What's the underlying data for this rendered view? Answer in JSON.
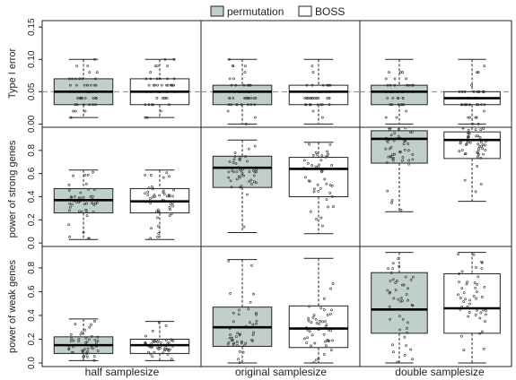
{
  "chart_data": {
    "type": "boxplot",
    "legend": {
      "placement": "top-center",
      "entries": [
        {
          "name": "permutation",
          "color": "#c0cfcc"
        },
        {
          "name": "BOSS",
          "color": "#ffffff"
        }
      ]
    },
    "columns": [
      "half samplesize",
      "original samplesize",
      "double samplesize"
    ],
    "series": [
      "permutation",
      "BOSS"
    ],
    "rows": [
      {
        "ylabel": "Type I error",
        "ylim": [
          -0.005,
          0.16
        ],
        "ticks": [
          0.0,
          0.05,
          0.1,
          0.15
        ],
        "tick_labels": [
          "0.00",
          "0.05",
          "0.10",
          "0.15"
        ],
        "reference_line": 0.05,
        "boxes": [
          [
            {
              "min": 0.01,
              "q1": 0.03,
              "median": 0.05,
              "q3": 0.07,
              "max": 0.1
            },
            {
              "min": 0.01,
              "q1": 0.03,
              "median": 0.05,
              "q3": 0.07,
              "max": 0.1
            }
          ],
          [
            {
              "min": 0.0,
              "q1": 0.03,
              "median": 0.05,
              "q3": 0.06,
              "max": 0.1
            },
            {
              "min": 0.0,
              "q1": 0.03,
              "median": 0.05,
              "q3": 0.06,
              "max": 0.1
            }
          ],
          [
            {
              "min": 0.0,
              "q1": 0.03,
              "median": 0.05,
              "q3": 0.06,
              "max": 0.1
            },
            {
              "min": 0.0,
              "q1": 0.03,
              "median": 0.04,
              "q3": 0.05,
              "max": 0.1
            }
          ]
        ]
      },
      {
        "ylabel": "power of strong genes",
        "ylim": [
          -0.03,
          1.0
        ],
        "ticks": [
          0.0,
          0.2,
          0.4,
          0.6,
          0.8
        ],
        "tick_labels": [
          "0.0",
          "0.2",
          "0.4",
          "0.6",
          "0.8"
        ],
        "boxes": [
          [
            {
              "min": 0.03,
              "q1": 0.26,
              "median": 0.37,
              "q3": 0.47,
              "max": 0.63
            },
            {
              "min": 0.03,
              "q1": 0.26,
              "median": 0.36,
              "q3": 0.47,
              "max": 0.63
            }
          ],
          [
            {
              "min": 0.09,
              "q1": 0.48,
              "median": 0.65,
              "q3": 0.75,
              "max": 0.89
            },
            {
              "min": 0.08,
              "q1": 0.4,
              "median": 0.64,
              "q3": 0.74,
              "max": 0.87
            }
          ],
          [
            {
              "min": 0.27,
              "q1": 0.69,
              "median": 0.9,
              "q3": 0.97,
              "max": 1.0
            },
            {
              "min": 0.36,
              "q1": 0.73,
              "median": 0.89,
              "q3": 0.96,
              "max": 1.0
            }
          ]
        ]
      },
      {
        "ylabel": "power of weak genes",
        "ylim": [
          -0.03,
          0.98
        ],
        "ticks": [
          0.0,
          0.2,
          0.4,
          0.6,
          0.8
        ],
        "tick_labels": [
          "0.0",
          "0.2",
          "0.4",
          "0.6",
          "0.8"
        ],
        "boxes": [
          [
            {
              "min": 0.02,
              "q1": 0.08,
              "median": 0.15,
              "q3": 0.22,
              "max": 0.37
            },
            {
              "min": 0.02,
              "q1": 0.08,
              "median": 0.15,
              "q3": 0.2,
              "max": 0.35
            }
          ],
          [
            {
              "min": 0.0,
              "q1": 0.14,
              "median": 0.3,
              "q3": 0.47,
              "max": 0.87
            },
            {
              "min": 0.0,
              "q1": 0.13,
              "median": 0.29,
              "q3": 0.48,
              "max": 0.88
            }
          ],
          [
            {
              "min": 0.0,
              "q1": 0.25,
              "median": 0.45,
              "q3": 0.76,
              "max": 0.93
            },
            {
              "min": 0.0,
              "q1": 0.25,
              "median": 0.46,
              "q3": 0.75,
              "max": 0.93
            }
          ]
        ]
      }
    ]
  }
}
